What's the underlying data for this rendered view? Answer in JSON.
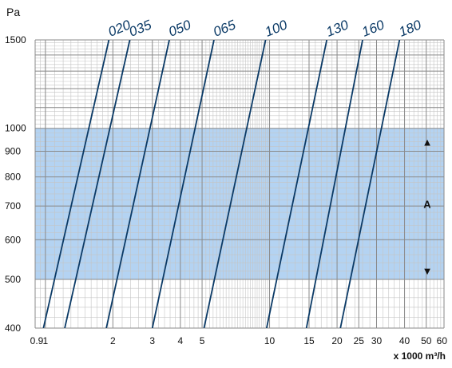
{
  "chart_data": {
    "type": "line",
    "ylabel": "Pa",
    "xlabel": "x 1000 m³/h",
    "x_scale": "log",
    "y_scale": "log",
    "xlim": [
      0.9,
      60
    ],
    "ylim": [
      400,
      1500
    ],
    "x_ticks": [
      0.9,
      1,
      2,
      3,
      4,
      5,
      10,
      15,
      20,
      25,
      30,
      40,
      50,
      60
    ],
    "x_tick_labels": [
      "0.9",
      "1",
      "2",
      "3",
      "4",
      "5",
      "10",
      "15",
      "20",
      "25",
      "30",
      "40",
      "50",
      "60"
    ],
    "y_ticks": [
      400,
      500,
      600,
      700,
      800,
      900,
      1000,
      1500
    ],
    "y_tick_labels": [
      "400",
      "500",
      "600",
      "700",
      "800",
      "900",
      "1000",
      "1500"
    ],
    "grid": true,
    "band": {
      "label": "A",
      "y_range": [
        500,
        1000
      ],
      "color": "#b4d3f2",
      "up_arrow": "▲",
      "down_arrow": "▼"
    },
    "series_color": "#0b3a66",
    "series": [
      {
        "name": "020",
        "values": [
          [
            0.98,
            400
          ],
          [
            1.92,
            1500
          ]
        ]
      },
      {
        "name": "035",
        "values": [
          [
            1.22,
            400
          ],
          [
            2.38,
            1500
          ]
        ]
      },
      {
        "name": "050",
        "values": [
          [
            1.87,
            400
          ],
          [
            3.57,
            1500
          ]
        ]
      },
      {
        "name": "065",
        "values": [
          [
            3.0,
            400
          ],
          [
            5.65,
            1500
          ]
        ]
      },
      {
        "name": "100",
        "values": [
          [
            5.1,
            400
          ],
          [
            9.6,
            1500
          ]
        ]
      },
      {
        "name": "130",
        "values": [
          [
            9.7,
            400
          ],
          [
            18.0,
            1500
          ]
        ]
      },
      {
        "name": "160",
        "values": [
          [
            14.6,
            400
          ],
          [
            26.0,
            1500
          ]
        ]
      },
      {
        "name": "180",
        "values": [
          [
            20.7,
            400
          ],
          [
            38.0,
            1500
          ]
        ]
      }
    ]
  }
}
